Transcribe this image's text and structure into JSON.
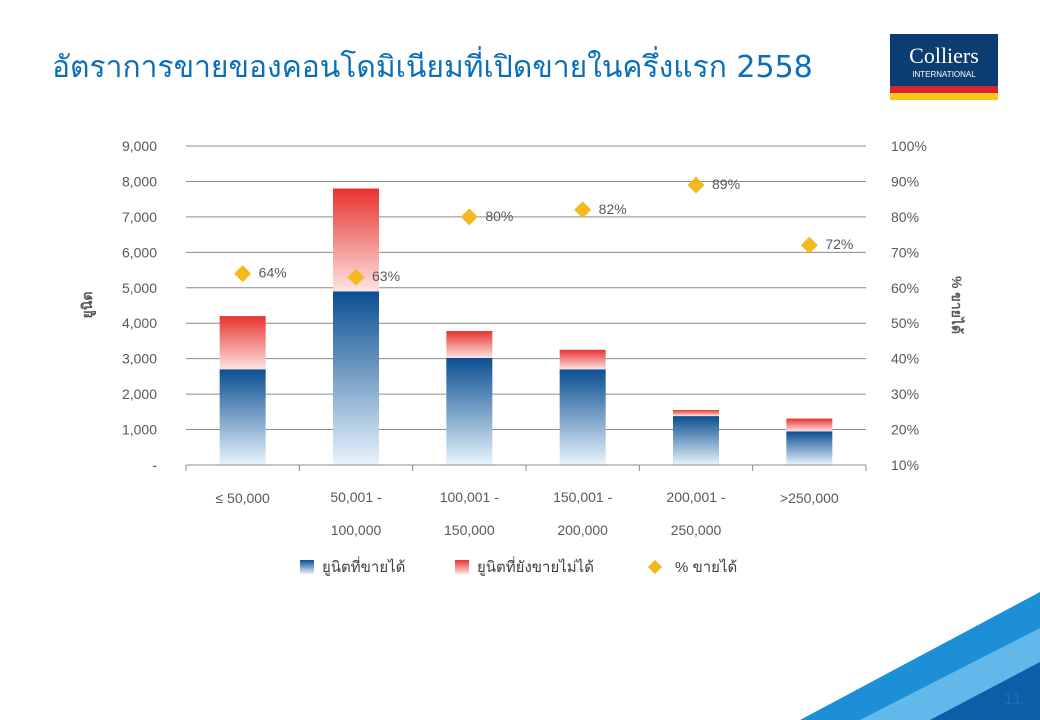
{
  "slide": {
    "title": "อัตราการขายของคอนโดมิเนียมที่เปิดขายในครึ่งแรก 2558",
    "page_number": "11",
    "logo_text_main": "Colliers",
    "logo_text_sub": "INTERNATIONAL"
  },
  "colors": {
    "title": "#0a6fb8",
    "sold": "#0b4f91",
    "unsold": "#e8332f",
    "percent_marker": "#f5b920",
    "logo_bg": "#0b3d73",
    "logo_red": "#d7262d",
    "logo_yellow": "#f5c518"
  },
  "chart_data": {
    "type": "bar",
    "stacked": true,
    "categories": [
      {
        "line1": "≤ 50,000",
        "line2": ""
      },
      {
        "line1": "50,001 -",
        "line2": "100,000"
      },
      {
        "line1": "100,001 -",
        "line2": "150,000"
      },
      {
        "line1": "150,001 -",
        "line2": "200,000"
      },
      {
        "line1": "200,001 -",
        "line2": "250,000"
      },
      {
        "line1": ">250,000",
        "line2": ""
      }
    ],
    "series": [
      {
        "name": "ยูนิตที่ขายได้",
        "axis": "left",
        "values": [
          2700,
          4900,
          3020,
          2700,
          1380,
          950
        ]
      },
      {
        "name": "ยูนิตที่ยังขายไม่ได้",
        "axis": "left",
        "values": [
          1500,
          2900,
          760,
          550,
          170,
          360
        ]
      },
      {
        "name": "% ขายได้",
        "axis": "right",
        "type": "scatter",
        "values": [
          64,
          63,
          80,
          82,
          89,
          72
        ],
        "labels": [
          "64%",
          "63%",
          "80%",
          "82%",
          "89%",
          "72%"
        ]
      }
    ],
    "ylabel": "ยูนิต",
    "y2label": "% ขายได้",
    "ylim": [
      0,
      9000
    ],
    "y2lim": [
      10,
      100
    ],
    "yticks": [
      "-",
      "1,000",
      "2,000",
      "3,000",
      "4,000",
      "5,000",
      "6,000",
      "7,000",
      "8,000",
      "9,000"
    ],
    "y2ticks": [
      "10%",
      "20%",
      "30%",
      "40%",
      "50%",
      "60%",
      "70%",
      "80%",
      "90%",
      "100%"
    ],
    "grid": true,
    "legend": "bottom"
  }
}
